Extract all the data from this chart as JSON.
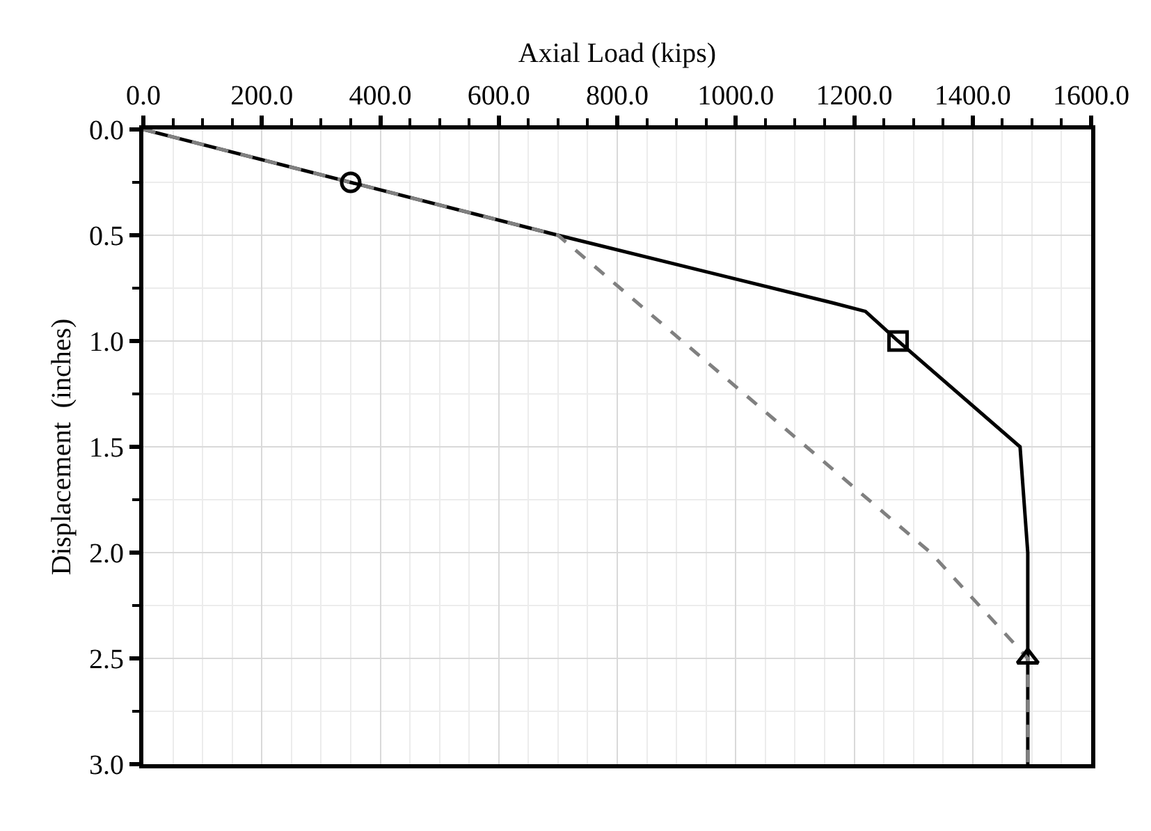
{
  "chart_data": {
    "type": "line",
    "xlabel": "Axial Load (kips)",
    "ylabel": "Displacement  (inches)",
    "xlim": [
      0,
      1600
    ],
    "xticks": [
      {
        "value": 0,
        "label": "0.0"
      },
      {
        "value": 200,
        "label": "200.0"
      },
      {
        "value": 400,
        "label": "400.0"
      },
      {
        "value": 600,
        "label": "600.0"
      },
      {
        "value": 800,
        "label": "800.0"
      },
      {
        "value": 1000,
        "label": "1000.0"
      },
      {
        "value": 1200,
        "label": "1200.0"
      },
      {
        "value": 1400,
        "label": "1400.0"
      },
      {
        "value": 1600,
        "label": "1600.0"
      }
    ],
    "ylim": [
      3,
      0
    ],
    "yticks": [
      {
        "value": 0,
        "label": "0.0"
      },
      {
        "value": 0.5,
        "label": "0.5"
      },
      {
        "value": 1,
        "label": "1.0"
      },
      {
        "value": 1.5,
        "label": "1.5"
      },
      {
        "value": 2,
        "label": "2.0"
      },
      {
        "value": 2.5,
        "label": "2.5"
      },
      {
        "value": 3,
        "label": "3.0"
      }
    ],
    "grid": true,
    "series": [
      {
        "color": "#000000",
        "line_style": "solid",
        "x": [
          0,
          700,
          1164,
          1219,
          1274,
          1480,
          1493,
          1493,
          1493
        ],
        "values": [
          0,
          0.5,
          0.82,
          0.86,
          1.0,
          1.5,
          2.0,
          2.5,
          3.0
        ]
      },
      {
        "color": "#808080",
        "line_style": "dashed",
        "x": [
          0,
          700,
          1329,
          1493,
          1493
        ],
        "values": [
          0,
          0.5,
          2.0,
          2.5,
          3.0
        ]
      },
      {
        "type": "scatter",
        "color": "#000000",
        "marker": "circle",
        "x": [
          350
        ],
        "values": [
          0.25
        ]
      },
      {
        "type": "scatter",
        "color": "#000000",
        "marker": "square",
        "x": [
          1274
        ],
        "values": [
          1.0
        ]
      },
      {
        "type": "scatter",
        "color": "#000000",
        "marker": "triangle",
        "x": [
          1493
        ],
        "values": [
          2.5
        ]
      }
    ]
  }
}
